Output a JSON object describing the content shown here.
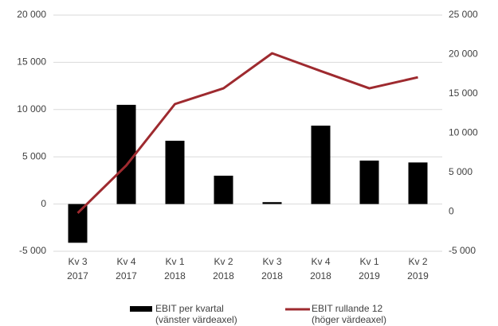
{
  "chart_data": {
    "type": "bar_line",
    "categories": [
      [
        "Kv 3",
        "2017"
      ],
      [
        "Kv 4",
        "2017"
      ],
      [
        "Kv 1",
        "2018"
      ],
      [
        "Kv 2",
        "2018"
      ],
      [
        "Kv 3",
        "2018"
      ],
      [
        "Kv 4",
        "2018"
      ],
      [
        "Kv 1",
        "2019"
      ],
      [
        "Kv 2",
        "2019"
      ]
    ],
    "series": [
      {
        "name": "EBIT per kvartal",
        "legend_note": "(vänster värdeaxel)",
        "type": "bar",
        "axis": "y",
        "color": "#000000",
        "values": [
          -4100,
          10500,
          6700,
          3000,
          200,
          8300,
          4600,
          4400
        ]
      },
      {
        "name": "EBIT rullande 12",
        "legend_note": "(höger värdeaxel)",
        "type": "line",
        "axis": "y2",
        "color": "#9e2a2f",
        "values": [
          -150,
          5900,
          13700,
          15700,
          20150,
          17900,
          15700,
          17100
        ]
      }
    ],
    "ylim": [
      -5000,
      20000
    ],
    "yticks": [
      {
        "value": -5000,
        "label": "-5 000"
      },
      0,
      {
        "value": 5000,
        "label": "5 000"
      },
      {
        "value": 10000,
        "label": "10 000"
      },
      {
        "value": 15000,
        "label": "15 000"
      },
      {
        "value": 20000,
        "label": "20 000"
      }
    ],
    "y2lim": [
      -5000,
      25000
    ],
    "y2ticks": [
      {
        "value": -5000,
        "label": "-5 000"
      },
      0,
      {
        "value": 5000,
        "label": "5 000"
      },
      {
        "value": 10000,
        "label": "10 000"
      },
      {
        "value": 15000,
        "label": "15 000"
      },
      {
        "value": 20000,
        "label": "20 000"
      },
      {
        "value": 25000,
        "label": "25 000"
      }
    ],
    "grid": true
  }
}
